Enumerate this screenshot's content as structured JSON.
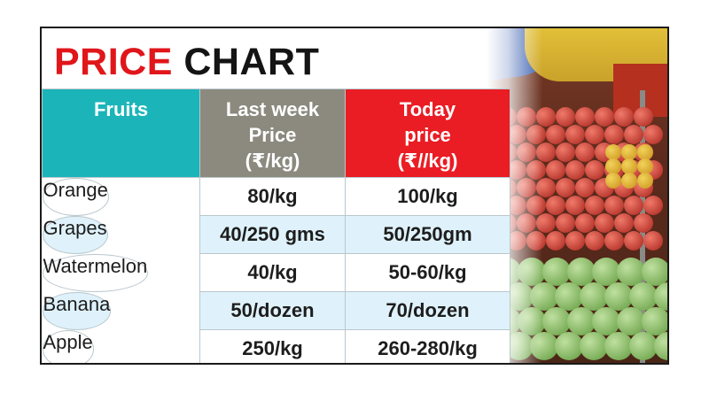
{
  "title": {
    "word1": "PRICE",
    "word2": "CHART"
  },
  "headers": {
    "fruit": "Fruits",
    "last_week": [
      "Last week",
      "Price",
      "(₹/kg)"
    ],
    "today": [
      "Today",
      "price",
      "(₹//kg)"
    ]
  },
  "rows": [
    {
      "fruit": "Orange",
      "last_week": "80/kg",
      "today": "100/kg"
    },
    {
      "fruit": "Grapes",
      "last_week": "40/250 gms",
      "today": "50/250gm"
    },
    {
      "fruit": "Watermelon",
      "last_week": "40/kg",
      "today": "50-60/kg"
    },
    {
      "fruit": "Banana",
      "last_week": "50/dozen",
      "today": "70/dozen"
    },
    {
      "fruit": "Apple",
      "last_week": "250/kg",
      "today": "260-280/kg"
    }
  ],
  "colors": {
    "title_red": "#e0161b",
    "header_teal": "#1bb5b9",
    "header_gray": "#8c8a7f",
    "header_red": "#ea1c24",
    "row_alt": "#dff2fb"
  }
}
